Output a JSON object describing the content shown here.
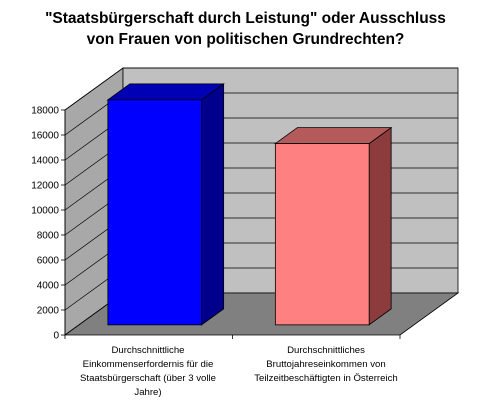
{
  "chart_data": {
    "type": "bar",
    "title_lines": [
      "\"Staatsbürgerschaft durch Leistung\" oder Ausschluss",
      "von Frauen von politischen Grundrechten?"
    ],
    "categories": [
      [
        "Durchschnittliche",
        "Einkommenserfordernis für die",
        "Staatsbürgerschaft (über 3 volle",
        "Jahre)"
      ],
      [
        "Durchschnittliches",
        "Bruttojahreseinkommen von",
        "Teilzeitbeschäftigten in Österreich"
      ]
    ],
    "values": [
      18000,
      14500
    ],
    "yticks": [
      "0",
      "2000",
      "4000",
      "6000",
      "8000",
      "10000",
      "12000",
      "14000",
      "16000",
      "18000"
    ],
    "ylim": [
      0,
      18000
    ],
    "grid": true,
    "legend": "none",
    "colors": {
      "bars": [
        "#0000ff",
        "#ff8080"
      ],
      "bar_sides": [
        "#00008c",
        "#8c3c3c"
      ],
      "bar_tops": [
        "#0000b4",
        "#b45a5a"
      ],
      "back_wall": "#c0c0c0",
      "side_wall": "#a8a8a8",
      "floor": "#808080",
      "gridline": "#000000"
    }
  }
}
